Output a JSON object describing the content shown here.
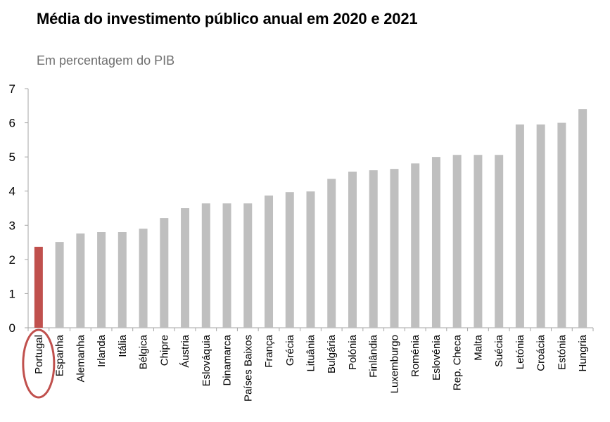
{
  "chart_data": {
    "type": "bar",
    "title": "Média do investimento público anual em 2020 e 2021",
    "subtitle": "Em percentagem do PIB",
    "xlabel": "",
    "ylabel": "",
    "ylim": [
      0,
      7
    ],
    "yticks": [
      0,
      1,
      2,
      3,
      4,
      5,
      6,
      7
    ],
    "grid": false,
    "legend": null,
    "categories": [
      "Portugal",
      "Espanha",
      "Alemanha",
      "Irlanda",
      "Itália",
      "Bélgica",
      "Chipre",
      "Áustria",
      "Eslováquia",
      "Dinamarca",
      "Países Baixos",
      "França",
      "Grécia",
      "Lituânia",
      "Bulgária",
      "Polónia",
      "Finlândia",
      "Luxemburgo",
      "Roménia",
      "Eslovénia",
      "Rep. Checa",
      "Malta",
      "Suécia",
      "Letónia",
      "Croácia",
      "Estónia",
      "Hungria"
    ],
    "values": [
      2.37,
      2.51,
      2.76,
      2.8,
      2.8,
      2.9,
      3.21,
      3.5,
      3.64,
      3.64,
      3.64,
      3.87,
      3.97,
      3.99,
      4.36,
      4.57,
      4.61,
      4.65,
      4.81,
      5.0,
      5.06,
      5.06,
      5.06,
      5.95,
      5.95,
      6.0,
      6.4
    ],
    "highlight": {
      "category": "Portugal",
      "color": "#C0504D",
      "annotation": "red ellipse around label"
    },
    "colors": {
      "default": "#BFBFBF",
      "highlight": "#C0504D",
      "axis": "#A6A6A6"
    }
  }
}
